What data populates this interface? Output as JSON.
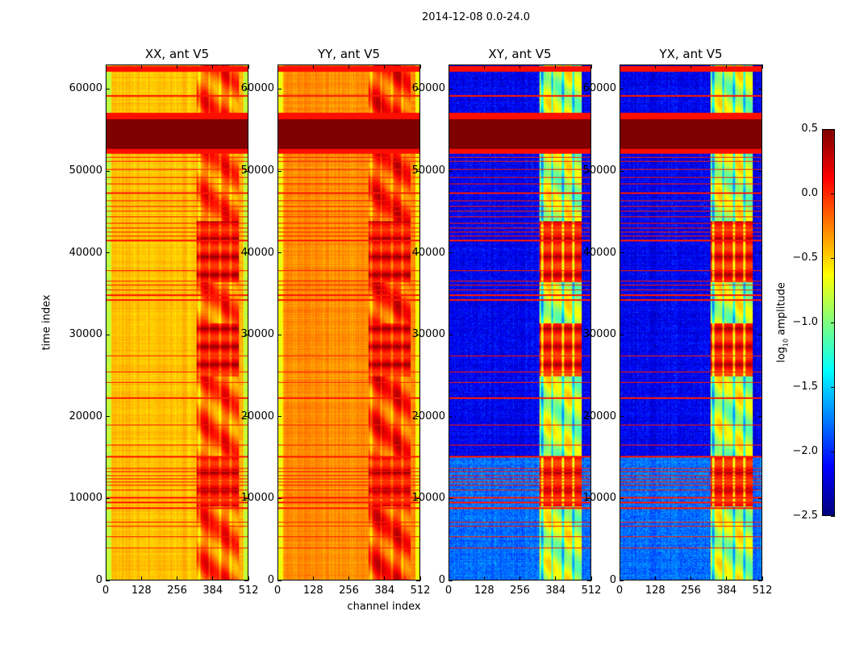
{
  "chart_data": {
    "type": "heatmap",
    "title": "2014-12-08 0.0-24.0",
    "xlabel": "channel index",
    "ylabel": "time index",
    "xlim": [
      0,
      512
    ],
    "ylim": [
      0,
      63000
    ],
    "xticks": [
      "0",
      "128",
      "256",
      "384",
      "512"
    ],
    "yticks": [
      "0",
      "10000",
      "20000",
      "30000",
      "40000",
      "50000",
      "60000"
    ],
    "colorbar": {
      "label_prefix": "log",
      "label_sub": "10",
      "label_suffix": " amplitude",
      "range": [
        -2.5,
        0.5
      ],
      "ticks": [
        "0.5",
        "0.0",
        "−0.5",
        "−1.0",
        "−1.5",
        "−2.0",
        "−2.5"
      ],
      "colormap": "jet"
    },
    "panels": [
      {
        "title": "XX, ant V5",
        "base_level": -0.45,
        "band_level": -0.1,
        "band_peak": 0.45
      },
      {
        "title": "YY, ant V5",
        "base_level": -0.3,
        "band_level": 0.0,
        "band_peak": 0.45
      },
      {
        "title": "XY, ant V5",
        "base_level": -2.15,
        "band_level": -0.8,
        "band_peak": 0.4
      },
      {
        "title": "YX, ant V5",
        "base_level": -2.15,
        "band_level": -0.8,
        "band_peak": 0.4
      }
    ],
    "band_channels": [
      324,
      480
    ],
    "saturated_time_ranges": [
      [
        52800,
        56500
      ]
    ],
    "orange_time_ranges": [
      [
        52200,
        52800
      ],
      [
        56500,
        57200
      ],
      [
        62300,
        63000
      ]
    ],
    "strong_band_time_ranges": [
      [
        9000,
        15000
      ],
      [
        36500,
        44000
      ],
      [
        25000,
        31500
      ]
    ],
    "flagged_times": [
      3900,
      5300,
      6600,
      7100,
      8800,
      9500,
      10100,
      11000,
      11600,
      12000,
      12400,
      12800,
      13300,
      13700,
      15100,
      16500,
      19000,
      22300,
      24200,
      25500,
      27500,
      34300,
      34900,
      35500,
      36100,
      36600,
      37900,
      41600,
      42100,
      42600,
      43100,
      43700,
      44500,
      45200,
      45800,
      46500,
      47400,
      48500,
      49300,
      50300,
      51300,
      51800,
      59300
    ]
  }
}
